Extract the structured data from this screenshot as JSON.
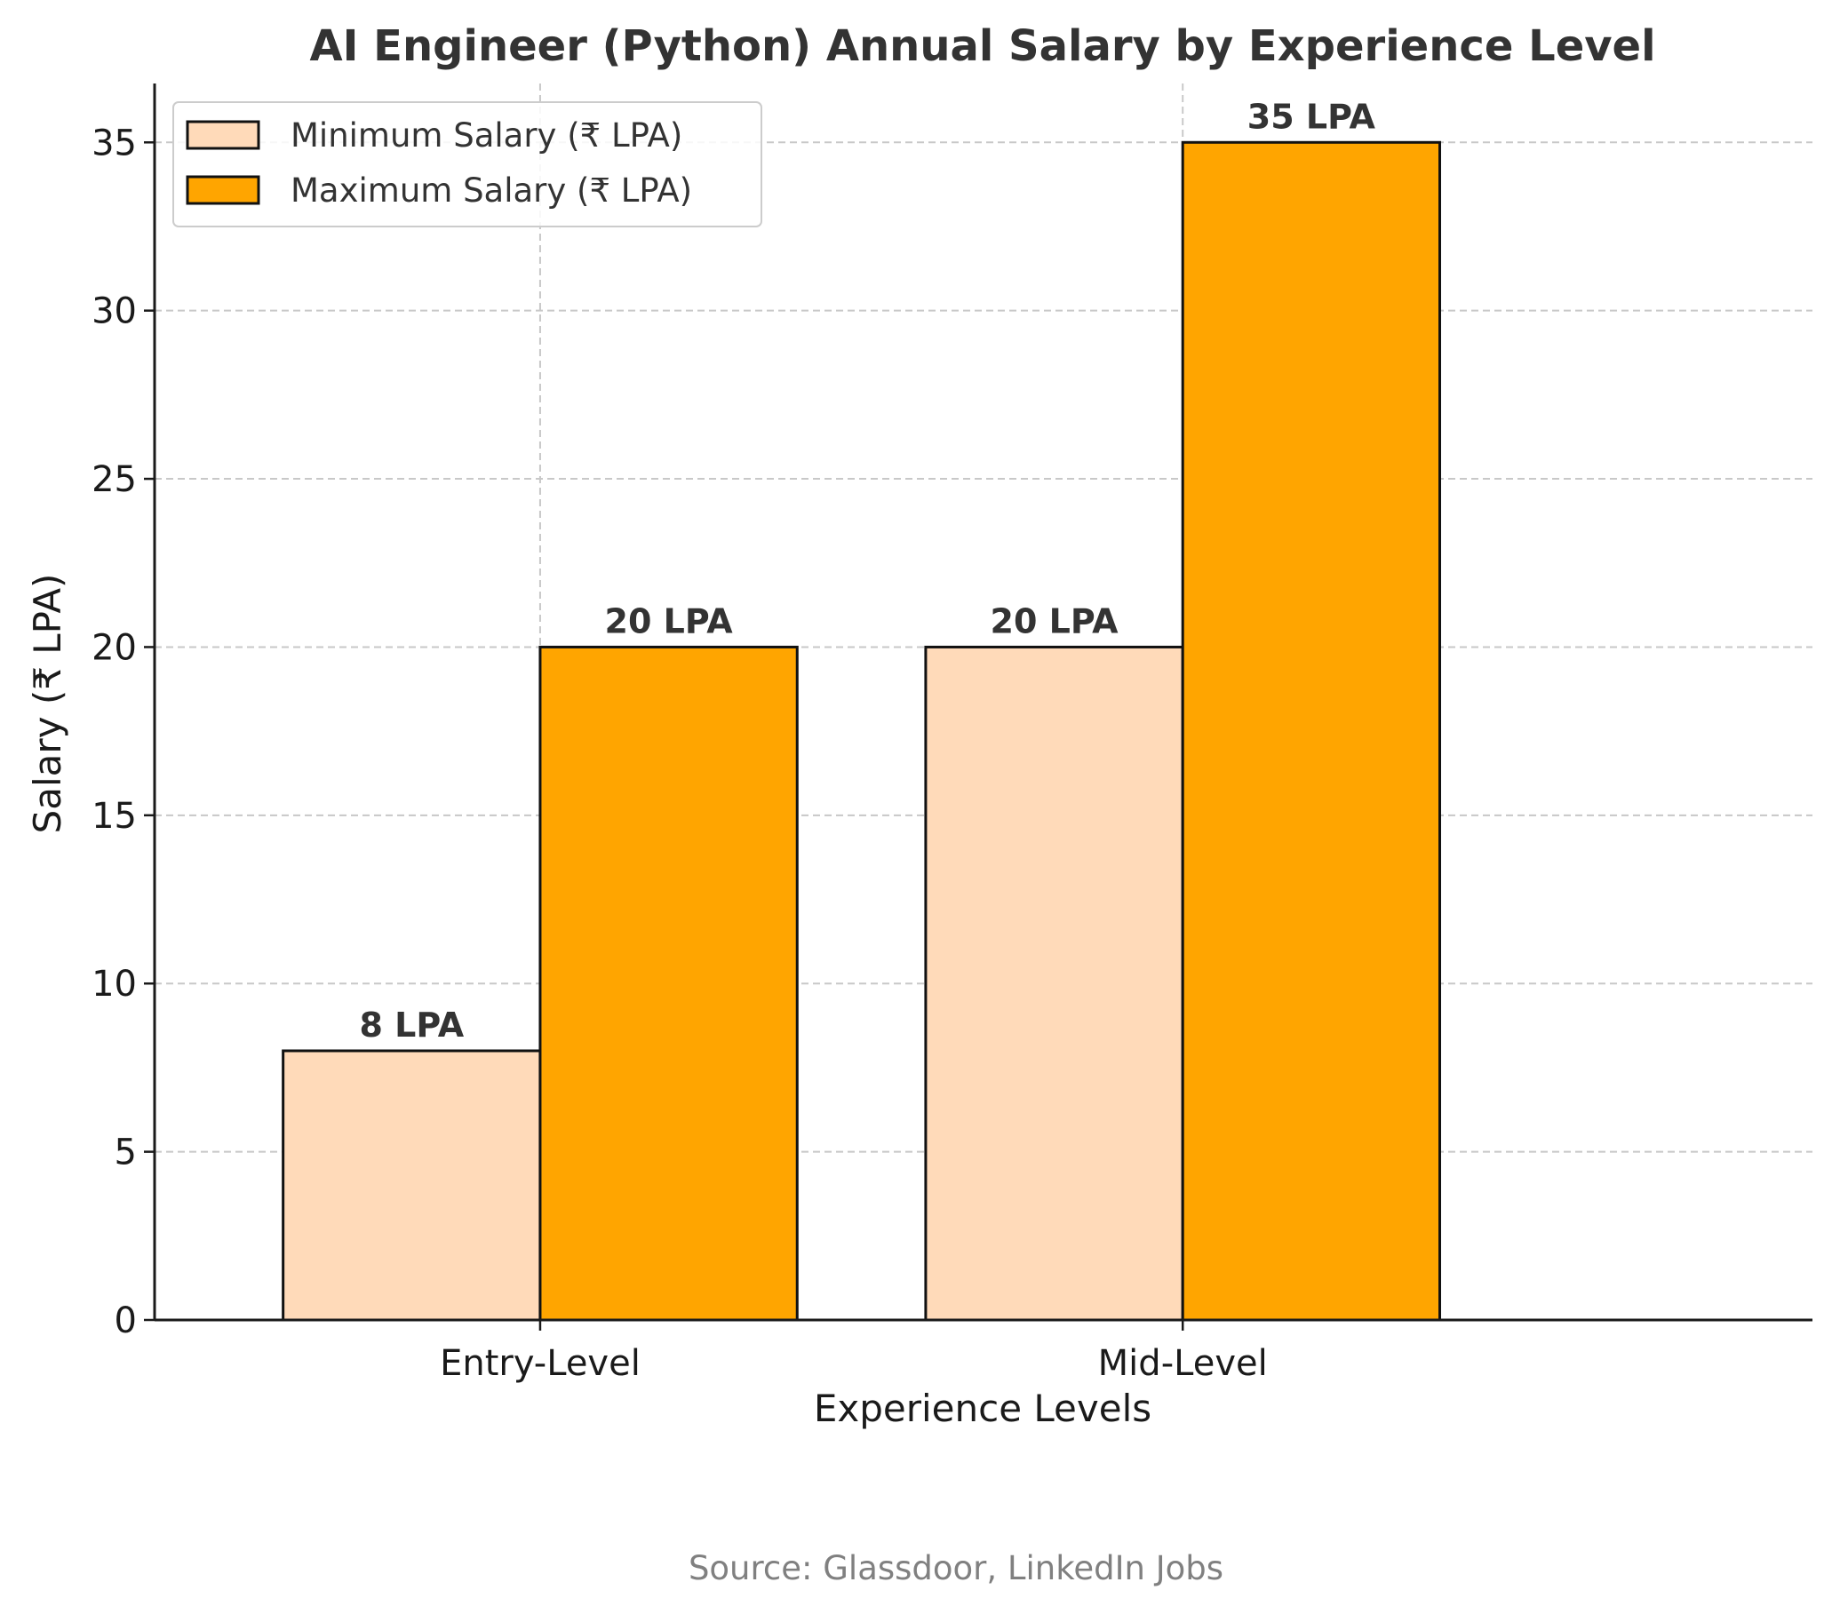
{
  "chart_data": {
    "type": "bar",
    "title": "AI Engineer (Python) Annual Salary by Experience Level",
    "xlabel": "Experience Levels",
    "ylabel": "Salary (₹ LPA)",
    "categories": [
      "Entry-Level",
      "Mid-Level"
    ],
    "series": [
      {
        "name": "Minimum Salary (₹ LPA)",
        "values": [
          8,
          20
        ],
        "labels": [
          "8 LPA",
          "20 LPA"
        ],
        "color": "#FFDAB9"
      },
      {
        "name": "Maximum Salary (₹ LPA)",
        "values": [
          20,
          35
        ],
        "labels": [
          "20 LPA",
          "35 LPA"
        ],
        "color": "#FFA500"
      }
    ],
    "ylim": [
      0,
      36.75
    ],
    "yticks": [
      0,
      5,
      10,
      15,
      20,
      25,
      30,
      35
    ],
    "grid": true,
    "legend_position": "top-left",
    "source": "Source: Glassdoor, LinkedIn Jobs"
  }
}
